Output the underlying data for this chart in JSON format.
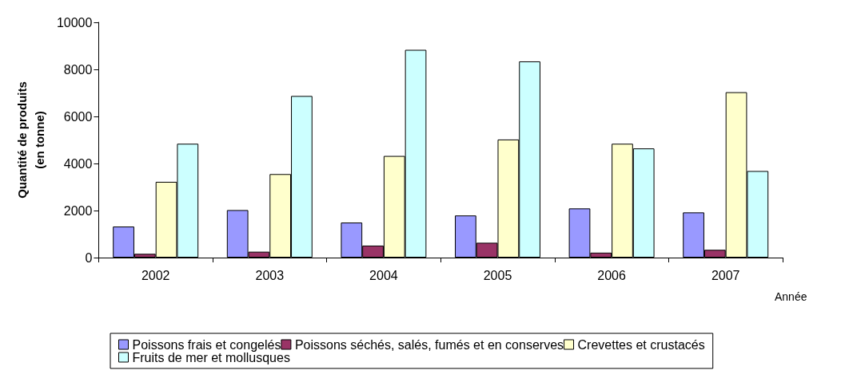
{
  "chart_data": {
    "type": "bar",
    "xlabel": "Année",
    "ylabel": "Quantité de produits\n(en tonne)",
    "categories": [
      "2002",
      "2003",
      "2004",
      "2005",
      "2006",
      "2007"
    ],
    "series": [
      {
        "name": "Poissons frais et congelés",
        "color": "#9999ff",
        "values": [
          1320,
          2020,
          1490,
          1790,
          2090,
          1920
        ]
      },
      {
        "name": "Poissons séchés, salés, fumés et en conserves",
        "color": "#993366",
        "values": [
          160,
          250,
          510,
          630,
          210,
          330
        ]
      },
      {
        "name": "Crevettes et crustacés",
        "color": "#ffffcc",
        "values": [
          3220,
          3550,
          4320,
          5020,
          4840,
          7030
        ]
      },
      {
        "name": "Fruits de mer et mollusques",
        "color": "#ccffff",
        "values": [
          4840,
          6870,
          8830,
          8340,
          4640,
          3680
        ]
      }
    ],
    "ylim": [
      0,
      10000
    ],
    "yticks": [
      0,
      2000,
      4000,
      6000,
      8000,
      10000
    ],
    "grid": false,
    "legend": "bottom"
  }
}
